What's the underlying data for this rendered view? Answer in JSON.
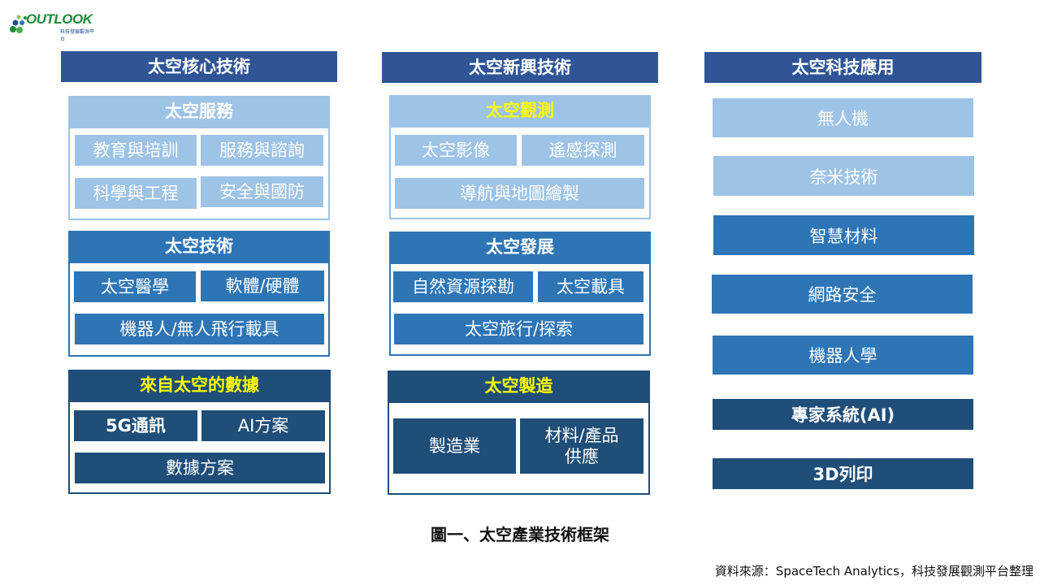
{
  "logo": {
    "word": "OUTLOOK",
    "sub": "科技發展觀測平台"
  },
  "columns": [
    {
      "title": "太空核心技術"
    },
    {
      "title": "太空新興技術"
    },
    {
      "title": "太空科技應用"
    }
  ],
  "core": {
    "service": {
      "title": "太空服務",
      "items": [
        "教育與培訓",
        "服務與諮詢",
        "科學與工程",
        "安全與國防"
      ]
    },
    "tech": {
      "title": "太空技術",
      "items": [
        "太空醫學",
        "軟體/硬體",
        "機器人/無人飛行載具"
      ]
    },
    "data": {
      "title": "來自太空的數據",
      "items": [
        "5G通訊",
        "AI方案",
        "數據方案"
      ]
    }
  },
  "emerging": {
    "observation": {
      "title": "太空觀測",
      "items": [
        "太空影像",
        "遙感探測",
        "導航與地圖繪製"
      ]
    },
    "development": {
      "title": "太空發展",
      "items": [
        "自然資源探勘",
        "太空載具",
        "太空旅行/探索"
      ]
    },
    "manufacturing": {
      "title": "太空製造",
      "items": [
        "製造業",
        "材料/產品\n供應"
      ]
    }
  },
  "applications": [
    "無人機",
    "奈米技術",
    "智慧材料",
    "網路安全",
    "機器人學",
    "專家系統(AI)",
    "3D列印"
  ],
  "caption": "圖一、太空產業技術框架",
  "source": "資料來源：SpaceTech Analytics，科技發展觀測平台整理",
  "colors": {
    "header": "#2f5597",
    "light": "#9dc3e6",
    "mid": "#2e75b6",
    "dark": "#1f4e79",
    "highlight": "#ffff00"
  }
}
